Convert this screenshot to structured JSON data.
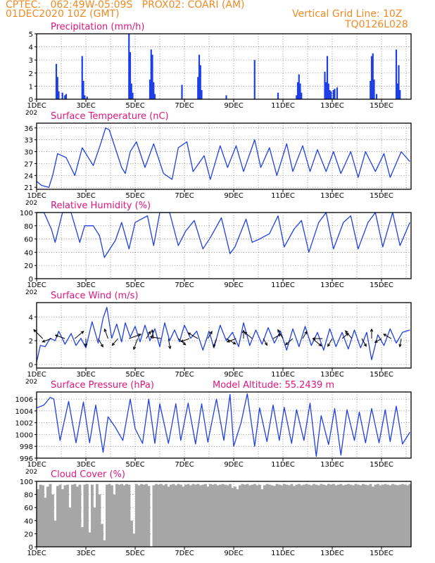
{
  "header": {
    "line1": "CPTEC:   062:49W-05:09S   PROX02: COARI (AM)",
    "line2": "01DEC2020 10Z (GMT)",
    "grid_note": "Vertical Grid Line: 10Z",
    "code": "TQ0126L028",
    "model_altitude": "Model Altitude: 55.2439  m"
  },
  "colors": {
    "header": "#f08a24",
    "title": "#e0167d",
    "series": "#1f3fe6",
    "cloud": "#a6a6a6",
    "grid": "#666666"
  },
  "x_axis": {
    "tick_labels": [
      "1DEC",
      "3DEC",
      "5DEC",
      "7DEC",
      "9DEC",
      "11DEC",
      "13DEC",
      "15DEC"
    ],
    "tick_days": [
      1,
      3,
      5,
      7,
      9,
      11,
      13,
      15
    ],
    "range_days": [
      1,
      16.2
    ],
    "year_fragment": "202"
  },
  "chart_data": [
    {
      "type": "bar",
      "title": "Precipitation (mm/h)",
      "ylim": [
        0,
        5
      ],
      "yticks": [
        0,
        1,
        2,
        3,
        4,
        5
      ],
      "x_days": [
        1.8,
        1.85,
        1.9,
        2.05,
        2.15,
        2.2,
        2.85,
        2.9,
        2.95,
        3.05,
        4.75,
        4.8,
        4.85,
        4.9,
        5.6,
        5.65,
        5.7,
        5.75,
        5.8,
        6.9,
        7.55,
        7.6,
        7.65,
        7.7,
        8.7,
        9.85,
        10.8,
        11.55,
        11.6,
        11.65,
        11.7,
        11.75,
        12.7,
        12.75,
        12.8,
        12.85,
        12.9,
        12.95,
        13.05,
        13.1,
        13.2,
        14.55,
        14.6,
        14.65,
        14.7,
        14.8,
        15.6,
        15.65,
        15.7,
        15.75
      ],
      "values": [
        2.7,
        1.7,
        0.6,
        0.5,
        0.3,
        0.4,
        3.3,
        1.4,
        0.3,
        0.2,
        5.0,
        3.6,
        1.2,
        0.5,
        1.5,
        3.8,
        3.4,
        1.3,
        0.4,
        1.1,
        1.7,
        3.4,
        2.6,
        0.7,
        0.3,
        3.0,
        0.5,
        0.3,
        1.3,
        1.9,
        1.2,
        0.5,
        2.1,
        1.3,
        3.3,
        1.2,
        0.7,
        0.6,
        0.7,
        0.8,
        0.9,
        1.4,
        3.3,
        3.5,
        1.5,
        0.4,
        3.8,
        1.2,
        2.6,
        0.7
      ]
    },
    {
      "type": "line",
      "title": "Surface Temperature (nC)",
      "ylim": [
        20.5,
        37.2
      ],
      "yticks": [
        21,
        24,
        27,
        30,
        33,
        36
      ],
      "x": [
        1,
        1.2,
        1.5,
        1.65,
        1.85,
        2.2,
        2.55,
        2.85,
        3.3,
        3.6,
        3.8,
        3.95,
        4.45,
        4.6,
        4.8,
        5.05,
        5.4,
        5.75,
        6.15,
        6.5,
        6.75,
        7.1,
        7.35,
        7.8,
        8.05,
        8.45,
        8.75,
        9.1,
        9.4,
        9.85,
        10.1,
        10.45,
        10.75,
        11.15,
        11.4,
        11.8,
        12.1,
        12.4,
        12.75,
        13.05,
        13.35,
        13.75,
        14.05,
        14.35,
        14.75,
        15.1,
        15.35,
        15.8,
        16.15
      ],
      "values": [
        22.5,
        21.5,
        21,
        24,
        29.5,
        28.5,
        24,
        31,
        26.5,
        32,
        36,
        35.5,
        26,
        24.5,
        30,
        32.5,
        26,
        32,
        24.5,
        23,
        31,
        32.5,
        25,
        29,
        23,
        31.5,
        26,
        31.5,
        25,
        33,
        26,
        31,
        24,
        32,
        25,
        31.5,
        25,
        30.5,
        25,
        30,
        24.5,
        30,
        23.5,
        30,
        25,
        29.5,
        23.5,
        30,
        27.5
      ]
    },
    {
      "type": "line",
      "title": "Relative Humidity (%)",
      "ylim": [
        0,
        100
      ],
      "yticks": [
        0,
        20,
        40,
        60,
        80,
        100
      ],
      "x": [
        1,
        1.3,
        1.6,
        1.75,
        2.05,
        2.4,
        2.75,
        2.95,
        3.3,
        3.55,
        3.75,
        4.2,
        4.45,
        4.75,
        5.0,
        5.5,
        5.75,
        6.0,
        6.4,
        6.75,
        7.05,
        7.4,
        7.75,
        8.05,
        8.5,
        8.85,
        9.05,
        9.5,
        9.75,
        10.05,
        10.45,
        10.8,
        11.05,
        11.45,
        11.75,
        12.05,
        12.45,
        12.75,
        13.05,
        13.45,
        13.75,
        14.05,
        14.45,
        14.75,
        15.05,
        15.45,
        15.75,
        16.15
      ],
      "values": [
        100,
        100,
        75,
        55,
        100,
        100,
        55,
        80,
        80,
        65,
        32,
        58,
        85,
        45,
        85,
        95,
        50,
        100,
        100,
        50,
        72,
        88,
        45,
        62,
        92,
        38,
        48,
        90,
        55,
        60,
        68,
        95,
        48,
        75,
        88,
        40,
        85,
        100,
        45,
        85,
        95,
        45,
        85,
        100,
        48,
        100,
        50,
        85
      ]
    },
    {
      "type": "line",
      "title": "Surface Wind (m/s)",
      "ylim": [
        -0.3,
        5.2
      ],
      "yticks": [
        0,
        2,
        4
      ],
      "x": [
        1,
        1.15,
        1.35,
        1.55,
        1.75,
        1.9,
        2.15,
        2.4,
        2.6,
        2.8,
        3.0,
        3.25,
        3.5,
        3.7,
        3.85,
        4.05,
        4.25,
        4.45,
        4.6,
        4.8,
        5.0,
        5.2,
        5.4,
        5.6,
        5.8,
        6.0,
        6.2,
        6.4,
        6.6,
        6.8,
        7.0,
        7.25,
        7.5,
        7.75,
        8.0,
        8.2,
        8.45,
        8.7,
        8.95,
        9.2,
        9.4,
        9.65,
        9.9,
        10.15,
        10.4,
        10.65,
        10.9,
        11.15,
        11.4,
        11.65,
        11.9,
        12.15,
        12.4,
        12.65,
        12.9,
        13.15,
        13.4,
        13.65,
        13.9,
        14.15,
        14.4,
        14.6,
        14.85,
        15.1,
        15.35,
        15.6,
        15.85,
        16.15
      ],
      "values": [
        0.2,
        1.6,
        1.5,
        2.2,
        2.0,
        2.8,
        1.7,
        2.6,
        1.6,
        2.2,
        1.4,
        3.6,
        1.8,
        3.9,
        4.8,
        2.2,
        3.4,
        1.9,
        3.5,
        2.3,
        3.2,
        1.9,
        3.3,
        2.0,
        3.0,
        1.5,
        3.5,
        2.0,
        2.9,
        1.9,
        3.3,
        2.2,
        2.8,
        1.2,
        2.8,
        1.4,
        3.3,
        2.0,
        2.7,
        1.5,
        3.5,
        1.6,
        2.9,
        1.7,
        3.1,
        1.8,
        2.8,
        1.2,
        3.0,
        1.5,
        3.2,
        1.6,
        2.7,
        1.2,
        3.0,
        1.5,
        2.7,
        1.3,
        2.9,
        1.4,
        2.7,
        0.4,
        2.5,
        1.6,
        3.0,
        1.8,
        2.7,
        2.9
      ],
      "arrows_days": [
        1.25,
        1.6,
        2.15,
        2.55,
        3.0,
        3.5,
        3.9,
        4.3,
        4.75,
        5.1,
        5.45,
        5.75,
        6.05,
        6.35,
        6.75,
        7.2,
        7.55,
        7.95,
        8.3,
        8.7,
        9.1,
        9.4,
        9.75,
        10.2,
        10.6,
        11.0,
        11.4,
        11.8,
        12.2,
        12.6,
        13.0,
        13.4,
        13.8,
        14.2,
        14.6,
        15.0,
        15.4,
        15.8
      ],
      "arrows_dir_deg": [
        135,
        200,
        160,
        40,
        270,
        300,
        110,
        230,
        20,
        250,
        60,
        100,
        170,
        280,
        320,
        200,
        150,
        60,
        250,
        330,
        200,
        90,
        140,
        300,
        30,
        120,
        220,
        60,
        320,
        180,
        240,
        40,
        130,
        300,
        90,
        210,
        150,
        260
      ],
      "arrows_len_ms": [
        2.0,
        1.5,
        1.6,
        1.8,
        1.2,
        1.5,
        1.6,
        1.4,
        2.0,
        1.8,
        1.3,
        1.4,
        1.7,
        1.6,
        1.5,
        1.4,
        1.8,
        1.3,
        1.4,
        1.7,
        1.5,
        1.3,
        1.6,
        1.2,
        1.4,
        1.6,
        1.5,
        1.3,
        1.8,
        1.5,
        1.4,
        1.3,
        1.6,
        1.4,
        1.5,
        1.2,
        1.4,
        1.3
      ]
    },
    {
      "type": "line",
      "title": "Surface Pressure (hPa)",
      "ylim": [
        996,
        1007.2
      ],
      "yticks": [
        996,
        998,
        1000,
        1002,
        1004,
        1006
      ],
      "x": [
        1,
        1.3,
        1.55,
        1.7,
        1.95,
        2.3,
        2.6,
        2.9,
        3.15,
        3.4,
        3.7,
        3.9,
        4.2,
        4.5,
        4.8,
        5.0,
        5.3,
        5.55,
        5.8,
        6.0,
        6.35,
        6.65,
        6.85,
        7.15,
        7.45,
        7.7,
        7.95,
        8.3,
        8.6,
        8.85,
        9.0,
        9.3,
        9.55,
        9.85,
        10.05,
        10.35,
        10.6,
        10.85,
        11.05,
        11.35,
        11.55,
        11.85,
        12.1,
        12.35,
        12.55,
        12.85,
        13.1,
        13.35,
        13.6,
        13.9,
        14.1,
        14.35,
        14.6,
        14.9,
        15.15,
        15.35,
        15.6,
        15.85,
        16.15
      ],
      "values": [
        1004.5,
        1005.0,
        1006.3,
        1006.0,
        999.0,
        1005.6,
        998.6,
        1005.5,
        998.6,
        1005.0,
        997.0,
        1003.0,
        1001.2,
        999.0,
        1006.0,
        1001.0,
        998.5,
        1006.0,
        998.5,
        1005.2,
        998.5,
        1005.2,
        999.0,
        1005.3,
        998.4,
        1005.2,
        998.7,
        1006.0,
        999.0,
        1006.8,
        998.0,
        1002.0,
        1006.9,
        998.0,
        1004.5,
        998.8,
        1005.0,
        999.0,
        1004.6,
        998.5,
        1004.2,
        999.0,
        1005.3,
        996.3,
        1003.2,
        998.3,
        1004.4,
        996.5,
        1004.2,
        999.0,
        1003.8,
        998.6,
        1004.4,
        998.6,
        1004.2,
        998.8,
        1004.8,
        998.4,
        1000.4
      ]
    },
    {
      "type": "bar",
      "title": "Cloud Cover (%)",
      "ylim": [
        0,
        100
      ],
      "yticks": [
        0,
        20,
        40,
        60,
        80,
        100
      ],
      "x_days": [
        1.0,
        1.1,
        1.2,
        1.3,
        1.4,
        1.5,
        1.6,
        1.7,
        1.8,
        1.9,
        2.0,
        2.1,
        2.2,
        2.3,
        2.4,
        2.5,
        2.6,
        2.7,
        2.8,
        2.9,
        3.0,
        3.1,
        3.2,
        3.3,
        3.4,
        3.5,
        3.6,
        3.7,
        3.8,
        3.9,
        4.0,
        4.1,
        4.2,
        4.3,
        4.4,
        4.5,
        4.6,
        4.7,
        4.8,
        4.9,
        5.0,
        5.1,
        5.2,
        5.3,
        5.4,
        5.5,
        5.6,
        5.7,
        5.8,
        5.9,
        6.0,
        6.1,
        6.2,
        6.3,
        6.4,
        6.5,
        6.6,
        6.7,
        6.8,
        6.9,
        7.0,
        7.1,
        7.2,
        7.3,
        7.4,
        7.5,
        7.6,
        7.7,
        7.8,
        7.9,
        8.0,
        8.1,
        8.2,
        8.3,
        8.4,
        8.5,
        8.6,
        8.7,
        8.8,
        8.9,
        9.0,
        9.1,
        9.2,
        9.3,
        9.4,
        9.5,
        9.6,
        9.7,
        9.8,
        9.9,
        10.0,
        10.1,
        10.2,
        10.3,
        10.4,
        10.5,
        10.6,
        10.7,
        10.8,
        10.9,
        11.0,
        11.1,
        11.2,
        11.3,
        11.4,
        11.5,
        11.6,
        11.7,
        11.8,
        11.9,
        12.0,
        12.1,
        12.2,
        12.3,
        12.4,
        12.5,
        12.6,
        12.7,
        12.8,
        12.9,
        13.0,
        13.1,
        13.2,
        13.3,
        13.4,
        13.5,
        13.6,
        13.7,
        13.8,
        13.9,
        14.0,
        14.1,
        14.2,
        14.3,
        14.4,
        14.5,
        14.6,
        14.7,
        14.8,
        14.9,
        15.0,
        15.1,
        15.2,
        15.3,
        15.4,
        15.5,
        15.6,
        15.7,
        15.8,
        15.9,
        16.0,
        16.1
      ],
      "values": [
        88,
        95,
        94,
        75,
        92,
        96,
        80,
        40,
        93,
        95,
        88,
        94,
        95,
        60,
        95,
        96,
        92,
        95,
        30,
        95,
        96,
        22,
        95,
        60,
        96,
        80,
        35,
        10,
        95,
        96,
        94,
        80,
        96,
        95,
        96,
        94,
        96,
        95,
        40,
        20,
        96,
        94,
        96,
        95,
        96,
        93,
        0,
        94,
        96,
        95,
        96,
        94,
        96,
        92,
        95,
        96,
        94,
        96,
        95,
        92,
        95,
        96,
        94,
        96,
        95,
        96,
        94,
        95,
        96,
        92,
        96,
        95,
        96,
        94,
        95,
        96,
        95,
        94,
        96,
        90,
        92,
        88,
        94,
        96,
        95,
        96,
        94,
        95,
        96,
        94,
        95,
        88,
        94,
        96,
        95,
        94,
        93,
        96,
        95,
        94,
        96,
        95,
        94,
        96,
        93,
        95,
        96,
        94,
        95,
        96,
        95,
        94,
        96,
        95,
        94,
        96,
        95,
        94,
        96,
        95,
        96,
        94,
        95,
        96,
        94,
        95,
        96,
        95,
        94,
        96,
        95,
        94,
        96,
        95,
        94,
        96,
        92,
        95,
        96,
        94,
        95,
        96,
        95,
        94,
        96,
        95,
        94,
        95,
        96,
        95,
        94,
        96
      ]
    }
  ]
}
